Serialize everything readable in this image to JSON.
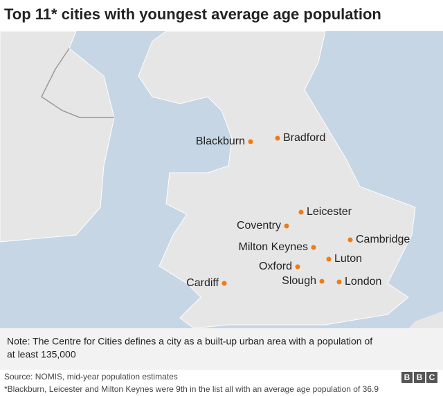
{
  "title": "Top 11* cities with youngest average age population",
  "cities": [
    "Blackburn",
    "Bradford",
    "Leicester",
    "Coventry",
    "Cambridge",
    "Milton Keynes",
    "Luton",
    "Oxford",
    "Cardiff",
    "Slough",
    "London"
  ],
  "note": [
    "Note: The Centre for Cities defines a city as a built-up urban area with a population of",
    "at least 135,000"
  ],
  "source": "Source: NOMIS, mid-year population estimates",
  "footnote": "*Blackburn, Leicester and Milton Keynes were 9th in the list all with an average age population of 36.9",
  "logo": [
    "B",
    "B",
    "C"
  ]
}
